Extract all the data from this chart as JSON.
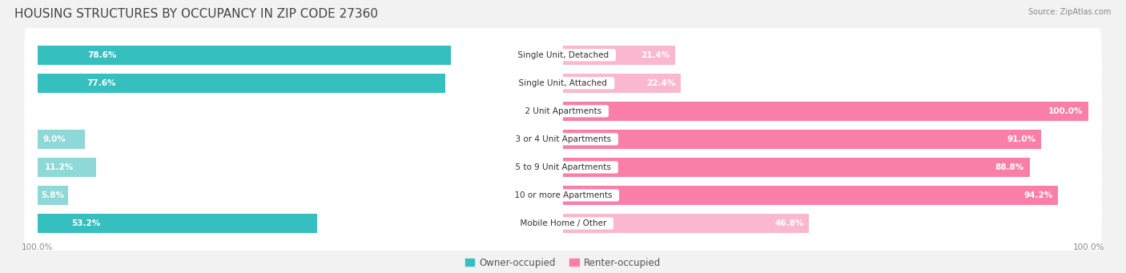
{
  "title": "HOUSING STRUCTURES BY OCCUPANCY IN ZIP CODE 27360",
  "source": "Source: ZipAtlas.com",
  "categories": [
    "Single Unit, Detached",
    "Single Unit, Attached",
    "2 Unit Apartments",
    "3 or 4 Unit Apartments",
    "5 to 9 Unit Apartments",
    "10 or more Apartments",
    "Mobile Home / Other"
  ],
  "owner_pct": [
    78.6,
    77.6,
    0.0,
    9.0,
    11.2,
    5.8,
    53.2
  ],
  "renter_pct": [
    21.4,
    22.4,
    100.0,
    91.0,
    88.8,
    94.2,
    46.8
  ],
  "owner_color": "#35bfbf",
  "owner_color_light": "#8ed8d8",
  "renter_color": "#f97fa8",
  "renter_color_light": "#f9b8cf",
  "bg_color": "#f2f2f2",
  "row_bg_color": "#ffffff",
  "title_fontsize": 11,
  "label_fontsize": 7.5,
  "pct_fontsize": 7.5,
  "axis_tick_fontsize": 7.5,
  "legend_fontsize": 8.5
}
